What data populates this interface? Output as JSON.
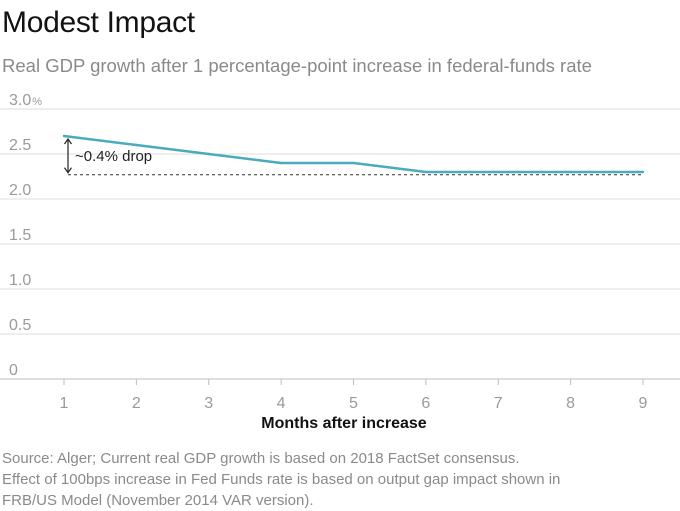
{
  "header": {
    "title": "Modest Impact",
    "subtitle": "Real GDP growth after 1  percentage-point increase in federal-funds rate"
  },
  "chart_data": {
    "type": "line",
    "title": "Modest Impact",
    "subtitle": "Real GDP growth after 1  percentage-point increase in federal-funds rate",
    "xlabel": "Months after increase",
    "ylabel": "",
    "x": [
      1,
      2,
      3,
      4,
      5,
      6,
      7,
      8,
      9
    ],
    "x_tick_labels": [
      "1",
      "2",
      "3",
      "4",
      "5",
      "6",
      "7",
      "8",
      "9"
    ],
    "series": [
      {
        "name": "Real GDP growth",
        "color": "#4aabbd",
        "values": [
          2.7,
          2.6,
          2.5,
          2.4,
          2.4,
          2.3,
          2.3,
          2.3,
          2.3
        ]
      }
    ],
    "y_tick_labels": [
      "0",
      "0.5",
      "1.0",
      "1.5",
      "2.0",
      "2.5",
      "3.0"
    ],
    "y_tick_values": [
      0,
      0.5,
      1.0,
      1.5,
      2.0,
      2.5,
      3.0
    ],
    "y_unit_label": "%",
    "ylim": [
      0,
      3.0
    ],
    "xlim": [
      1,
      9
    ],
    "grid": true,
    "reference_line": {
      "value": 2.27,
      "style": "dashed"
    },
    "annotation": {
      "text": "~0.4% drop",
      "from": 2.7,
      "to": 2.27
    }
  },
  "source": {
    "lines": [
      "Source: Alger; Current real GDP growth is based on 2018 FactSet consensus.",
      "Effect of 100bps increase in Fed Funds rate is based on output gap impact shown in",
      "FRB/US Model (November 2014 VAR version)."
    ]
  },
  "colors": {
    "line": "#4aabbd",
    "grid": "#dcdcdc",
    "axis_text": "#9a9a9a"
  }
}
